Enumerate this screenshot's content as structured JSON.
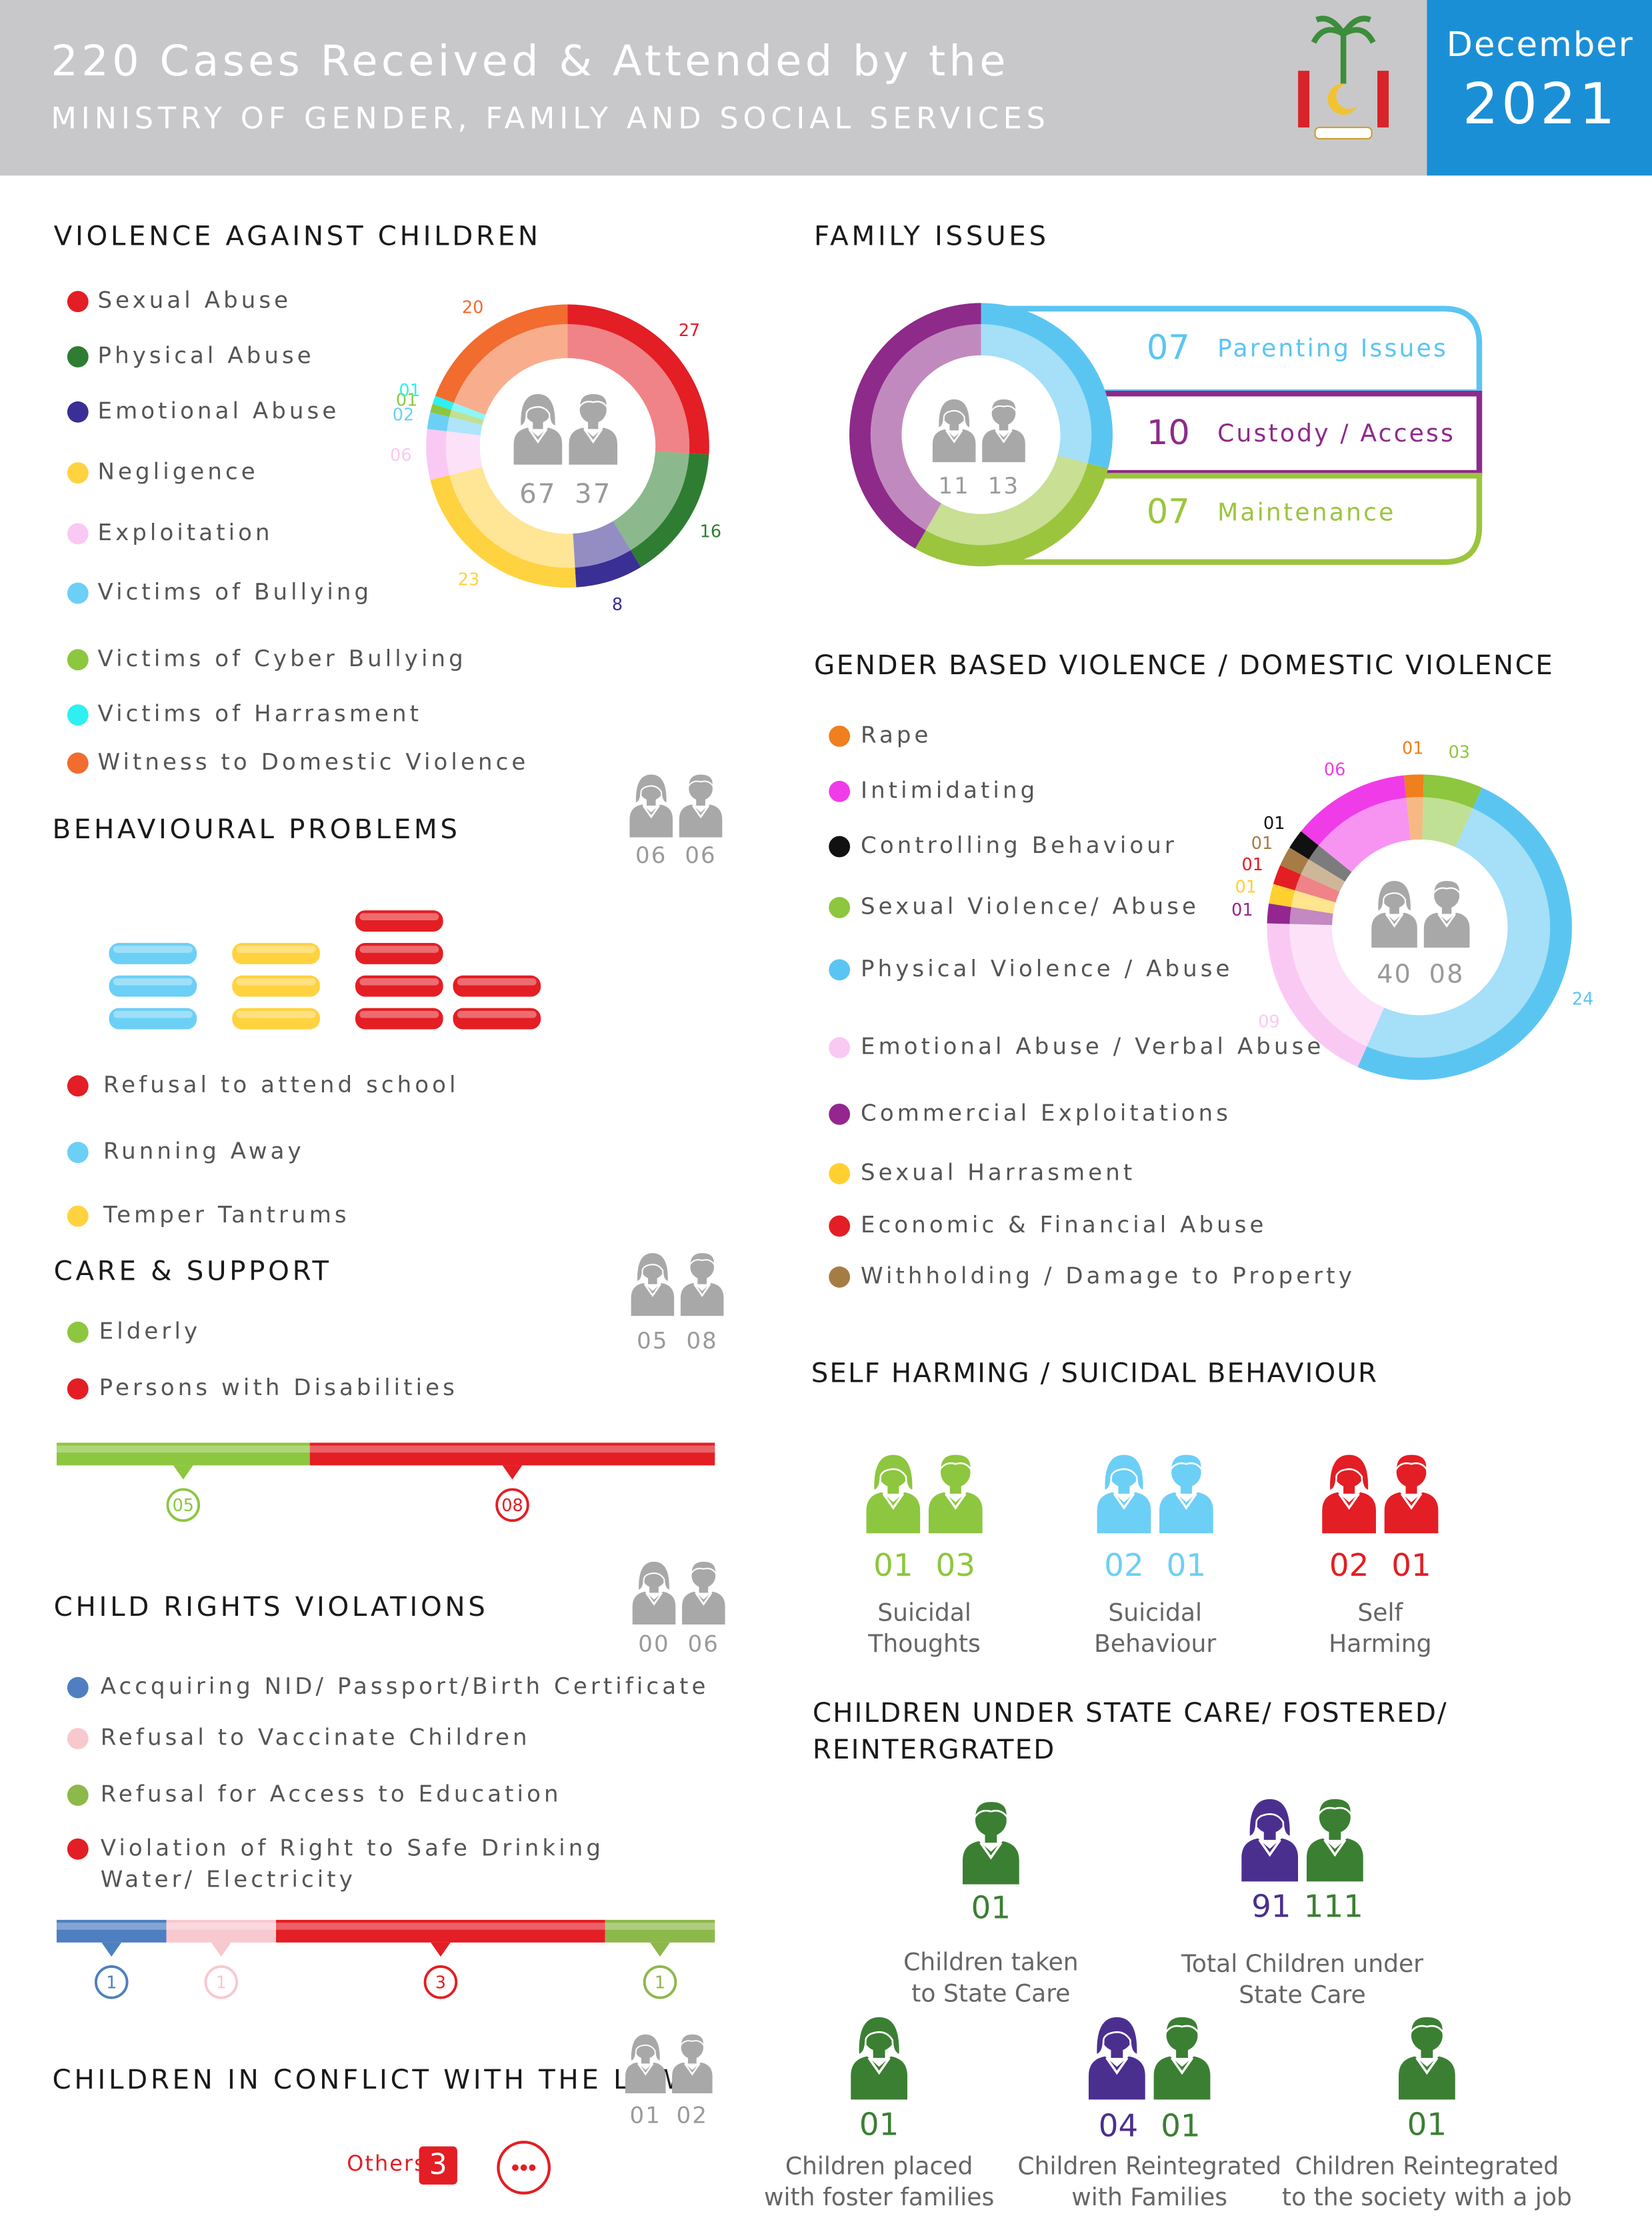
{
  "header": {
    "title": "220 Cases Received & Attended by the",
    "subtitle": "MINISTRY OF GENDER, FAMILY AND SOCIAL SERVICES",
    "month": "December",
    "year": 2021
  },
  "violence_against_children": {
    "title": "VIOLENCE AGAINST CHILDREN",
    "girls": 67,
    "boys": 37,
    "items": [
      {
        "name": "Sexual Abuse",
        "color": "#e31e24",
        "value": 27
      },
      {
        "name": "Physical Abuse",
        "color": "#2e7d32",
        "value": 16
      },
      {
        "name": "Emotional Abuse",
        "color": "#3a2f94",
        "value": 8
      },
      {
        "name": "Negligence",
        "color": "#ffd23f",
        "value": 23
      },
      {
        "name": "Exploitation",
        "color": "#f9c9f3",
        "value": {
          "value": 6,
          "label": "06"
        }
      },
      {
        "name": "Victims of Bullying",
        "color": "#6ccff6",
        "value": {
          "value": 2,
          "label": "02"
        }
      },
      {
        "name": "Victims of Cyber Bullying",
        "color": "#8dc63f",
        "value": {
          "value": 1,
          "label": "01"
        }
      },
      {
        "name": "Victims of Harrasment",
        "color": "#2ef0f0",
        "value": {
          "value": 1,
          "label": "01"
        }
      },
      {
        "name": "Witness to Domestic Violence",
        "color": "#f26b2f",
        "value": 20
      }
    ]
  },
  "behavioural_problems": {
    "title": "BEHAVIOURAL PROBLEMS",
    "girls": {
      "value": 6,
      "label": "06"
    },
    "boys": {
      "value": 6,
      "label": "06"
    },
    "items": [
      {
        "name": "Refusal to attend school",
        "color": "#e31e24",
        "value": 6
      },
      {
        "name": "Running Away",
        "color": "#6ccff6",
        "value": 3
      },
      {
        "name": "Temper Tantrums",
        "color": "#ffd23f",
        "value": 3
      }
    ]
  },
  "care_support": {
    "title": "CARE & SUPPORT",
    "girls": {
      "value": 5,
      "label": "05"
    },
    "boys": {
      "value": 8,
      "label": "08"
    },
    "items": [
      {
        "name": "Elderly",
        "color": "#8dc63f",
        "value": {
          "value": 5,
          "label": "05"
        }
      },
      {
        "name": "Persons with Disabilities",
        "color": "#e31e24",
        "value": {
          "value": 8,
          "label": "08"
        }
      }
    ]
  },
  "child_rights_violations": {
    "title": "CHILD RIGHTS VIOLATIONS",
    "girls": {
      "value": 0,
      "label": "00"
    },
    "boys": {
      "value": 6,
      "label": "06"
    },
    "items": [
      {
        "name": "Accquiring NID/ Passport/Birth Certificate",
        "color": "#4f7fc0",
        "value": 1
      },
      {
        "name": "Refusal to Vaccinate Children",
        "color": "#f8c8cf",
        "value": 1
      },
      {
        "name": "Refusal for Access to Education",
        "color": "#8db84a",
        "value": 1
      },
      {
        "name": [
          "Violation of Right to Safe Drinking",
          "Water/ Electricity"
        ],
        "color": "#e31e24",
        "value": 3
      }
    ]
  },
  "children_in_conflict_with_law": {
    "title": "CHILDREN IN CONFLICT WITH THE LAW",
    "girls": {
      "value": 1,
      "label": "01"
    },
    "boys": {
      "value": 2,
      "label": "02"
    },
    "others_label": "Others",
    "others": 3
  },
  "family_issues": {
    "title": "FAMILY ISSUES",
    "girls": 11,
    "boys": 13,
    "items": [
      {
        "name": "Parenting Issues",
        "color": "#5bc5f2",
        "value": {
          "value": 7,
          "label": "07"
        }
      },
      {
        "name": "Custody / Access",
        "color": "#8e2a8a",
        "value": 10
      },
      {
        "name": "Maintenance",
        "color": "#9bc53d",
        "value": {
          "value": 7,
          "label": "07"
        }
      }
    ]
  },
  "gender_based_violence": {
    "title": "GENDER BASED VIOLENCE / DOMESTIC VIOLENCE",
    "girls": 40,
    "boys": {
      "value": 8,
      "label": "08"
    },
    "items": [
      {
        "name": "Rape",
        "color": "#f07f1e",
        "value": {
          "value": 1,
          "label": "01"
        }
      },
      {
        "name": "Intimidating",
        "color": "#f03ce8",
        "value": {
          "value": 6,
          "label": "06"
        }
      },
      {
        "name": "Controlling Behaviour",
        "color": "#111111",
        "value": {
          "value": 1,
          "label": "01"
        }
      },
      {
        "name": "Sexual Violence/ Abuse",
        "color": "#8dc63f",
        "value": {
          "value": 3,
          "label": "03"
        }
      },
      {
        "name": "Physical Violence / Abuse",
        "color": "#5bc5f2",
        "value": 24
      },
      {
        "name": "Emotional Abuse / Verbal Abuse",
        "color": "#f9c9f3",
        "value": {
          "value": 9,
          "label": "09"
        }
      },
      {
        "name": "Commercial Exploitations",
        "color": "#93278f",
        "value": {
          "value": 1,
          "label": "01"
        }
      },
      {
        "name": "Sexual Harrasment",
        "color": "#ffd02f",
        "value": {
          "value": 1,
          "label": "01"
        }
      },
      {
        "name": "Economic & Financial Abuse",
        "color": "#e31e24",
        "value": {
          "value": 1,
          "label": "01"
        }
      },
      {
        "name": "Withholding / Damage to Property",
        "color": "#a67c45",
        "value": {
          "value": 1,
          "label": "01"
        }
      }
    ]
  },
  "self_harming": {
    "title": "SELF HARMING / SUICIDAL BEHAVIOUR",
    "groups": [
      {
        "label": [
          "Suicidal",
          "Thoughts"
        ],
        "color": "#8dc63f",
        "girls": {
          "value": 1,
          "label": "01"
        },
        "boys": {
          "value": 3,
          "label": "03"
        }
      },
      {
        "label": [
          "Suicidal",
          "Behaviour"
        ],
        "color": "#6ccff6",
        "girls": {
          "value": 2,
          "label": "02"
        },
        "boys": {
          "value": 1,
          "label": "01"
        }
      },
      {
        "label": [
          "Self",
          "Harming"
        ],
        "color": "#e31e24",
        "girls": {
          "value": 2,
          "label": "02"
        },
        "boys": {
          "value": 1,
          "label": "01"
        }
      }
    ]
  },
  "state_care": {
    "title": [
      "CHILDREN UNDER STATE CARE/ FOSTERED/",
      "REINTERGRATED"
    ],
    "items": [
      {
        "label": [
          "Children taken",
          "to State Care"
        ],
        "boys": {
          "value": 1,
          "label": "01"
        }
      },
      {
        "label": [
          "Total Children under",
          "State Care"
        ],
        "girls": 91,
        "boys": 111
      },
      {
        "label": [
          "Children placed",
          "with foster families"
        ],
        "girls": {
          "value": 1,
          "label": "01"
        }
      },
      {
        "label": [
          "Children Reintegrated",
          "with Families"
        ],
        "girls": {
          "value": 4,
          "label": "04"
        },
        "boys": {
          "value": 1,
          "label": "01"
        }
      },
      {
        "label": [
          "Children Reintegrated",
          "to the society with a job"
        ],
        "boys": {
          "value": 1,
          "label": "01"
        }
      }
    ]
  }
}
